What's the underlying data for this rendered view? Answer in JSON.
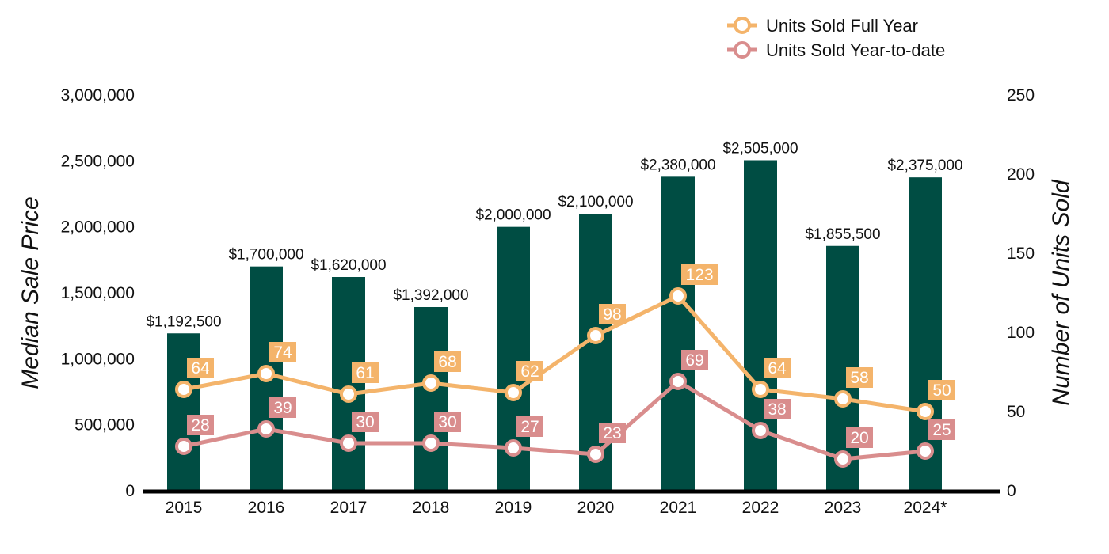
{
  "chart_data": {
    "type": "bar",
    "categories": [
      "2015",
      "2016",
      "2017",
      "2018",
      "2019",
      "2020",
      "2021",
      "2022",
      "2023",
      "2024*"
    ],
    "series": [
      {
        "name": "",
        "type": "bar",
        "axis": "left",
        "color": "#004d43",
        "values": [
          1192500,
          1700000,
          1620000,
          1392000,
          2000000,
          2100000,
          2380000,
          2505000,
          1855500,
          2375000
        ],
        "labels": [
          "$1,192,500",
          "$1,700,000",
          "$1,620,000",
          "$1,392,000",
          "$2,000,000",
          "$2,100,000",
          "$2,380,000",
          "$2,505,000",
          "$1,855,500",
          "$2,375,000"
        ]
      },
      {
        "name": "Units Sold Full Year",
        "type": "line",
        "axis": "right",
        "color": "#f4b46b",
        "values": [
          64,
          74,
          61,
          68,
          62,
          98,
          123,
          64,
          58,
          50
        ]
      },
      {
        "name": "Units Sold Year-to-date",
        "type": "line",
        "axis": "right",
        "color": "#d98d8d",
        "values": [
          28,
          39,
          30,
          30,
          27,
          23,
          69,
          38,
          20,
          25
        ]
      }
    ],
    "ylabel": "Median Sale Price",
    "y2label": "Number of Units Sold",
    "ylim": [
      0,
      3000000
    ],
    "y2lim": [
      0,
      250
    ],
    "yticks": [
      "0",
      "500,000",
      "1,000,000",
      "1,500,000",
      "2,000,000",
      "2,500,000",
      "3,000,000"
    ],
    "y2ticks": [
      "0",
      "50",
      "100",
      "150",
      "200",
      "250"
    ],
    "legend": "top-right",
    "grid": false
  }
}
